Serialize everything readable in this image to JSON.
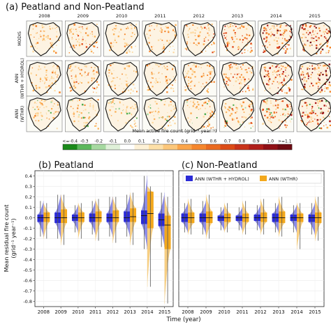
{
  "panel_a": {
    "title": "(a) Peatland and Non-Peatland",
    "years": [
      "2008",
      "2009",
      "2010",
      "2011",
      "2012",
      "2013",
      "2014",
      "2015"
    ],
    "rows": [
      "MODIS",
      "ANN\n(WTHR + HYDROL)",
      "ANN\n(WTHR)"
    ],
    "row_intensity": [
      [
        0.3,
        0.42,
        0.22,
        0.28,
        0.4,
        0.55,
        0.75,
        0.85
      ],
      [
        0.25,
        0.38,
        0.22,
        0.26,
        0.35,
        0.5,
        0.7,
        0.8
      ],
      [
        0.22,
        0.3,
        0.18,
        0.22,
        0.3,
        0.45,
        0.55,
        0.7
      ]
    ],
    "colorbar": {
      "title": "Mean active fire count (grid⁻¹ year⁻¹)",
      "tick_labels": [
        "<=-0.4",
        "-0.3",
        "-0.2",
        "-0.1",
        "0.0",
        "0.1",
        "0.2",
        "0.3",
        "0.4",
        "0.5",
        "0.6",
        "0.7",
        "0.8",
        "0.9",
        "1.0",
        ">=1.1"
      ],
      "colors": [
        "#1a8a1a",
        "#5cb85c",
        "#a6d9a0",
        "#dff0d8",
        "#ffffff",
        "#fdf1d6",
        "#fde0a8",
        "#fcc77a",
        "#fba54a",
        "#f5862d",
        "#ea6a20",
        "#dc4c17",
        "#c9331a",
        "#b01e1a",
        "#901016",
        "#6e0a12"
      ]
    }
  },
  "chart_data": [
    {
      "type": "violin",
      "title": "(b) Peatland",
      "xlabel": "Time (year)",
      "ylabel": "Mean residual fire count\n(grid⁻¹ year⁻¹)",
      "categories": [
        "2008",
        "2009",
        "2010",
        "2011",
        "2012",
        "2013",
        "2014",
        "2015"
      ],
      "ylim": [
        -0.85,
        0.45
      ],
      "yticks": [
        -0.8,
        -0.7,
        -0.6,
        -0.5,
        -0.4,
        -0.3,
        -0.2,
        -0.1,
        0.0,
        0.1,
        0.2,
        0.3,
        0.4
      ],
      "series": [
        {
          "name": "ANN (WTHR + HYDROL)",
          "color": "#2b2bd6",
          "median": [
            0.0,
            0.0,
            0.0,
            0.0,
            0.0,
            0.0,
            0.02,
            -0.02
          ],
          "q1": [
            -0.04,
            -0.05,
            -0.03,
            -0.04,
            -0.04,
            -0.04,
            -0.06,
            -0.08
          ],
          "q3": [
            0.03,
            0.05,
            0.03,
            0.04,
            0.04,
            0.06,
            0.07,
            0.04
          ],
          "wmin": [
            -0.18,
            -0.2,
            -0.14,
            -0.16,
            -0.18,
            -0.18,
            -0.3,
            -0.28
          ],
          "wmax": [
            0.16,
            0.22,
            0.12,
            0.16,
            0.2,
            0.22,
            0.4,
            0.24
          ]
        },
        {
          "name": "ANN (WTHR)",
          "color": "#f3a81c",
          "median": [
            0.0,
            0.0,
            0.0,
            0.0,
            0.0,
            0.01,
            0.04,
            -0.07
          ],
          "q1": [
            -0.04,
            -0.05,
            -0.04,
            -0.04,
            -0.04,
            -0.04,
            -0.1,
            -0.3
          ],
          "q3": [
            0.05,
            0.08,
            0.05,
            0.06,
            0.07,
            0.09,
            0.25,
            0.02
          ],
          "wmin": [
            -0.2,
            -0.26,
            -0.2,
            -0.22,
            -0.24,
            -0.26,
            -0.66,
            -0.82
          ],
          "wmax": [
            0.14,
            0.22,
            0.14,
            0.18,
            0.2,
            0.24,
            0.3,
            0.2
          ]
        }
      ]
    },
    {
      "type": "violin",
      "title": "(c) Non-Peatland",
      "xlabel": "",
      "ylabel": "",
      "categories": [
        "2008",
        "2009",
        "2010",
        "2011",
        "2012",
        "2013",
        "2014",
        "2015"
      ],
      "ylim": [
        -0.85,
        0.45
      ],
      "series": [
        {
          "name": "ANN (WTHR + HYDROL)",
          "color": "#2b2bd6",
          "median": [
            0.0,
            0.0,
            0.0,
            0.0,
            0.0,
            0.0,
            0.0,
            0.0
          ],
          "q1": [
            -0.04,
            -0.04,
            -0.03,
            -0.03,
            -0.03,
            -0.04,
            -0.03,
            -0.04
          ],
          "q3": [
            0.04,
            0.04,
            0.02,
            0.02,
            0.03,
            0.04,
            0.03,
            0.03
          ],
          "wmin": [
            -0.14,
            -0.16,
            -0.12,
            -0.12,
            -0.12,
            -0.14,
            -0.14,
            -0.16
          ],
          "wmax": [
            0.14,
            0.16,
            0.1,
            0.1,
            0.12,
            0.14,
            0.12,
            0.14
          ]
        },
        {
          "name": "ANN (WTHR)",
          "color": "#f3a81c",
          "median": [
            0.0,
            0.0,
            0.0,
            0.0,
            0.0,
            0.0,
            0.0,
            0.0
          ],
          "q1": [
            -0.05,
            -0.05,
            -0.04,
            -0.04,
            -0.04,
            -0.05,
            -0.04,
            -0.05
          ],
          "q3": [
            0.05,
            0.06,
            0.04,
            0.04,
            0.05,
            0.06,
            0.04,
            0.05
          ],
          "wmin": [
            -0.16,
            -0.2,
            -0.14,
            -0.16,
            -0.16,
            -0.18,
            -0.3,
            -0.22
          ],
          "wmax": [
            0.18,
            0.22,
            0.14,
            0.16,
            0.18,
            0.2,
            0.14,
            0.2
          ]
        }
      ],
      "legend": "top-right"
    }
  ]
}
